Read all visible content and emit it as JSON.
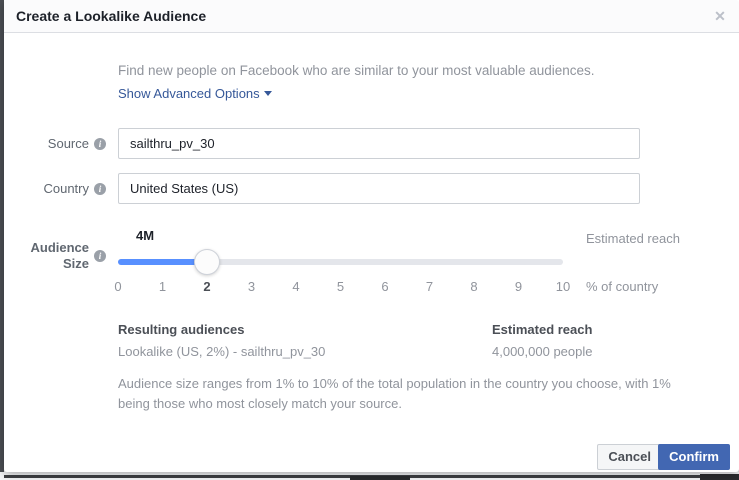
{
  "modal": {
    "title": "Create a Lookalike Audience",
    "close_icon": "✕",
    "description": "Find new people on Facebook who are similar to your most valuable audiences.",
    "advanced_options_label": "Show Advanced Options",
    "fields": {
      "source": {
        "label": "Source",
        "value": "sailthru_pv_30"
      },
      "country": {
        "label": "Country",
        "value": "United States (US)"
      }
    },
    "audience_size": {
      "label_line1": "Audience",
      "label_line2": "Size",
      "current_value_label": "4M",
      "estimated_reach_label": "Estimated reach",
      "unit_label": "% of country",
      "ticks": [
        "0",
        "1",
        "2",
        "3",
        "4",
        "5",
        "6",
        "7",
        "8",
        "9",
        "10"
      ],
      "selected_tick": "2",
      "value": 2,
      "min": 0,
      "max": 10
    },
    "results": {
      "audiences_header": "Resulting audiences",
      "audiences_value": "Lookalike (US, 2%) - sailthru_pv_30",
      "reach_header": "Estimated reach",
      "reach_value": "4,000,000 people"
    },
    "note": "Audience size ranges from 1% to 10% of the total population in the country you choose, with 1% being those who most closely match your source.",
    "buttons": {
      "cancel": "Cancel",
      "confirm": "Confirm"
    }
  },
  "colors": {
    "accent_blue": "#4267b2",
    "slider_blue": "#5890ff",
    "link_blue": "#365899",
    "track_gray": "#e4e6eb"
  }
}
